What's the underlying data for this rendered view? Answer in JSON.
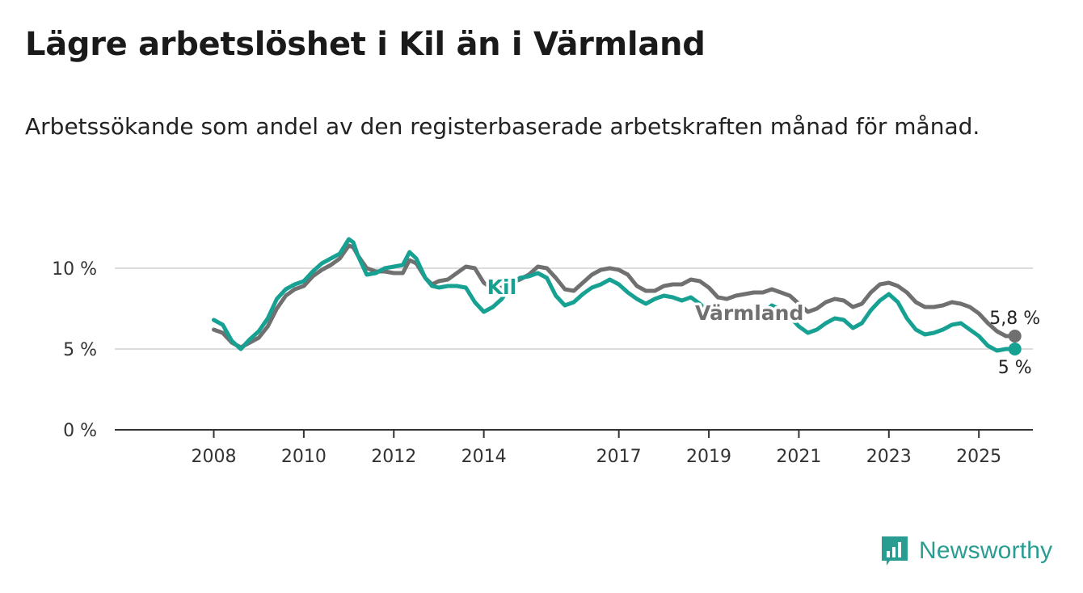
{
  "title": "Lägre arbetslöshet i Kil än i Värmland",
  "subtitle": "Arbetssökande som andel av den registerbaserade arbetskraften månad för månad.",
  "brand": {
    "name": "Newsworthy",
    "icon": "bar-chart-chat-icon",
    "color": "#2a9d93"
  },
  "chart_data": {
    "type": "line",
    "x_tick_labels": [
      "2008",
      "2010",
      "2012",
      "2014",
      "2017",
      "2019",
      "2021",
      "2023",
      "2025"
    ],
    "x_tick_positions": [
      2008.0,
      2010.0,
      2012.0,
      2014.0,
      2017.0,
      2019.0,
      2021.0,
      2023.0,
      2025.0
    ],
    "xlim": [
      2005.8,
      2026.2
    ],
    "y_tick_labels": [
      "0 %",
      "5 %",
      "10 %"
    ],
    "y_tick_values": [
      0,
      5,
      10
    ],
    "ylim": [
      0,
      10
    ],
    "grid": true,
    "series": [
      {
        "name": "Värmland",
        "color": "#707070",
        "end_label": "5,8 %",
        "points": [
          [
            2008.0,
            6.2
          ],
          [
            2008.2,
            6.0
          ],
          [
            2008.4,
            5.4
          ],
          [
            2008.6,
            5.1
          ],
          [
            2008.8,
            5.4
          ],
          [
            2009.0,
            5.7
          ],
          [
            2009.2,
            6.4
          ],
          [
            2009.4,
            7.5
          ],
          [
            2009.6,
            8.3
          ],
          [
            2009.8,
            8.7
          ],
          [
            2010.0,
            8.9
          ],
          [
            2010.2,
            9.5
          ],
          [
            2010.4,
            9.9
          ],
          [
            2010.6,
            10.2
          ],
          [
            2010.8,
            10.6
          ],
          [
            2011.0,
            11.4
          ],
          [
            2011.1,
            11.3
          ],
          [
            2011.2,
            10.8
          ],
          [
            2011.4,
            10.0
          ],
          [
            2011.6,
            9.8
          ],
          [
            2011.8,
            9.8
          ],
          [
            2012.0,
            9.7
          ],
          [
            2012.2,
            9.7
          ],
          [
            2012.35,
            10.5
          ],
          [
            2012.5,
            10.3
          ],
          [
            2012.7,
            9.4
          ],
          [
            2012.85,
            9.0
          ],
          [
            2013.0,
            9.2
          ],
          [
            2013.2,
            9.3
          ],
          [
            2013.4,
            9.7
          ],
          [
            2013.6,
            10.1
          ],
          [
            2013.8,
            10.0
          ],
          [
            2014.0,
            9.1
          ],
          [
            2014.2,
            8.7
          ],
          [
            2014.4,
            8.8
          ],
          [
            2014.6,
            9.1
          ],
          [
            2014.8,
            9.3
          ],
          [
            2015.0,
            9.6
          ],
          [
            2015.2,
            10.1
          ],
          [
            2015.4,
            10.0
          ],
          [
            2015.6,
            9.4
          ],
          [
            2015.8,
            8.7
          ],
          [
            2016.0,
            8.6
          ],
          [
            2016.2,
            9.1
          ],
          [
            2016.4,
            9.6
          ],
          [
            2016.6,
            9.9
          ],
          [
            2016.8,
            10.0
          ],
          [
            2017.0,
            9.9
          ],
          [
            2017.2,
            9.6
          ],
          [
            2017.4,
            8.9
          ],
          [
            2017.6,
            8.6
          ],
          [
            2017.8,
            8.6
          ],
          [
            2018.0,
            8.9
          ],
          [
            2018.2,
            9.0
          ],
          [
            2018.4,
            9.0
          ],
          [
            2018.6,
            9.3
          ],
          [
            2018.8,
            9.2
          ],
          [
            2019.0,
            8.8
          ],
          [
            2019.2,
            8.2
          ],
          [
            2019.4,
            8.1
          ],
          [
            2019.6,
            8.3
          ],
          [
            2019.8,
            8.4
          ],
          [
            2020.0,
            8.5
          ],
          [
            2020.2,
            8.5
          ],
          [
            2020.4,
            8.7
          ],
          [
            2020.6,
            8.5
          ],
          [
            2020.8,
            8.3
          ],
          [
            2021.0,
            7.8
          ],
          [
            2021.2,
            7.3
          ],
          [
            2021.4,
            7.5
          ],
          [
            2021.6,
            7.9
          ],
          [
            2021.8,
            8.1
          ],
          [
            2022.0,
            8.0
          ],
          [
            2022.2,
            7.6
          ],
          [
            2022.4,
            7.8
          ],
          [
            2022.6,
            8.5
          ],
          [
            2022.8,
            9.0
          ],
          [
            2023.0,
            9.1
          ],
          [
            2023.2,
            8.9
          ],
          [
            2023.4,
            8.5
          ],
          [
            2023.6,
            7.9
          ],
          [
            2023.8,
            7.6
          ],
          [
            2024.0,
            7.6
          ],
          [
            2024.2,
            7.7
          ],
          [
            2024.4,
            7.9
          ],
          [
            2024.6,
            7.8
          ],
          [
            2024.8,
            7.6
          ],
          [
            2025.0,
            7.2
          ],
          [
            2025.2,
            6.6
          ],
          [
            2025.4,
            6.1
          ],
          [
            2025.6,
            5.8
          ],
          [
            2025.8,
            5.8
          ]
        ]
      },
      {
        "name": "Kil",
        "color": "#17a192",
        "end_label": "5 %",
        "points": [
          [
            2008.0,
            6.8
          ],
          [
            2008.2,
            6.5
          ],
          [
            2008.4,
            5.5
          ],
          [
            2008.6,
            5.0
          ],
          [
            2008.8,
            5.6
          ],
          [
            2009.0,
            6.1
          ],
          [
            2009.2,
            6.9
          ],
          [
            2009.4,
            8.1
          ],
          [
            2009.6,
            8.7
          ],
          [
            2009.8,
            9.0
          ],
          [
            2010.0,
            9.2
          ],
          [
            2010.2,
            9.8
          ],
          [
            2010.4,
            10.3
          ],
          [
            2010.6,
            10.6
          ],
          [
            2010.8,
            10.9
          ],
          [
            2011.0,
            11.8
          ],
          [
            2011.1,
            11.6
          ],
          [
            2011.2,
            10.8
          ],
          [
            2011.4,
            9.6
          ],
          [
            2011.6,
            9.7
          ],
          [
            2011.8,
            10.0
          ],
          [
            2012.0,
            10.1
          ],
          [
            2012.2,
            10.2
          ],
          [
            2012.35,
            11.0
          ],
          [
            2012.5,
            10.6
          ],
          [
            2012.7,
            9.4
          ],
          [
            2012.85,
            8.9
          ],
          [
            2013.0,
            8.8
          ],
          [
            2013.2,
            8.9
          ],
          [
            2013.4,
            8.9
          ],
          [
            2013.6,
            8.8
          ],
          [
            2013.8,
            7.9
          ],
          [
            2014.0,
            7.3
          ],
          [
            2014.2,
            7.6
          ],
          [
            2014.4,
            8.1
          ],
          [
            2014.6,
            8.9
          ],
          [
            2014.8,
            9.4
          ],
          [
            2015.0,
            9.5
          ],
          [
            2015.2,
            9.7
          ],
          [
            2015.4,
            9.4
          ],
          [
            2015.6,
            8.3
          ],
          [
            2015.8,
            7.7
          ],
          [
            2016.0,
            7.9
          ],
          [
            2016.2,
            8.4
          ],
          [
            2016.4,
            8.8
          ],
          [
            2016.6,
            9.0
          ],
          [
            2016.8,
            9.3
          ],
          [
            2017.0,
            9.0
          ],
          [
            2017.2,
            8.5
          ],
          [
            2017.4,
            8.1
          ],
          [
            2017.6,
            7.8
          ],
          [
            2017.8,
            8.1
          ],
          [
            2018.0,
            8.3
          ],
          [
            2018.2,
            8.2
          ],
          [
            2018.4,
            8.0
          ],
          [
            2018.6,
            8.2
          ],
          [
            2018.8,
            7.8
          ],
          [
            2019.0,
            7.2
          ],
          [
            2019.2,
            6.8
          ],
          [
            2019.4,
            7.1
          ],
          [
            2019.6,
            7.5
          ],
          [
            2019.8,
            7.4
          ],
          [
            2020.0,
            7.3
          ],
          [
            2020.2,
            7.2
          ],
          [
            2020.4,
            7.7
          ],
          [
            2020.6,
            7.4
          ],
          [
            2020.8,
            7.0
          ],
          [
            2021.0,
            6.4
          ],
          [
            2021.2,
            6.0
          ],
          [
            2021.4,
            6.2
          ],
          [
            2021.6,
            6.6
          ],
          [
            2021.8,
            6.9
          ],
          [
            2022.0,
            6.8
          ],
          [
            2022.2,
            6.3
          ],
          [
            2022.4,
            6.6
          ],
          [
            2022.6,
            7.4
          ],
          [
            2022.8,
            8.0
          ],
          [
            2023.0,
            8.4
          ],
          [
            2023.2,
            7.9
          ],
          [
            2023.4,
            6.9
          ],
          [
            2023.6,
            6.2
          ],
          [
            2023.8,
            5.9
          ],
          [
            2024.0,
            6.0
          ],
          [
            2024.2,
            6.2
          ],
          [
            2024.4,
            6.5
          ],
          [
            2024.6,
            6.6
          ],
          [
            2024.8,
            6.2
          ],
          [
            2025.0,
            5.8
          ],
          [
            2025.2,
            5.2
          ],
          [
            2025.4,
            4.9
          ],
          [
            2025.6,
            5.0
          ],
          [
            2025.8,
            5.0
          ]
        ]
      }
    ]
  }
}
